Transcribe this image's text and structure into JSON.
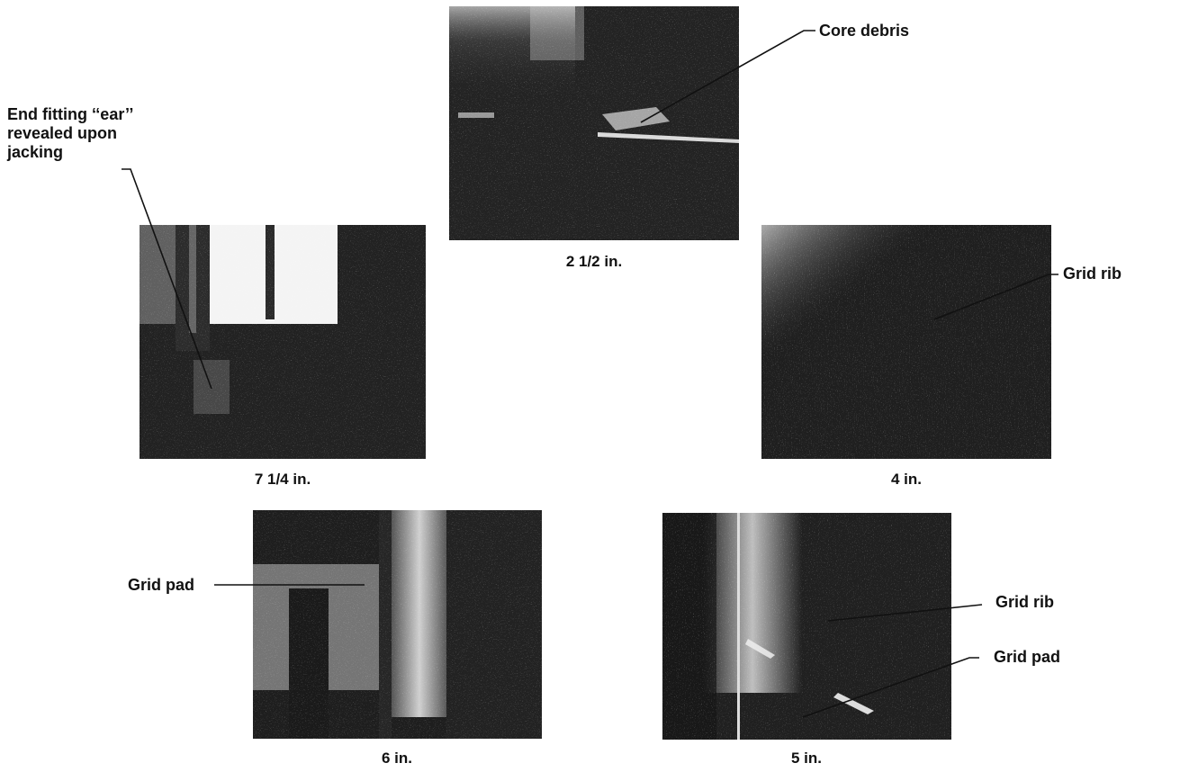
{
  "figure": {
    "panels": [
      {
        "id": "top",
        "caption": "2 1/2 in."
      },
      {
        "id": "left",
        "caption": "7 1/4 in."
      },
      {
        "id": "right",
        "caption": "4 in."
      },
      {
        "id": "bottom_left",
        "caption": "6 in."
      },
      {
        "id": "bottom_right",
        "caption": "5 in."
      }
    ],
    "labels": {
      "core_debris": "Core debris",
      "end_fitting_line1": "End fitting ‘‘ear’’",
      "end_fitting_line2": "revealed upon",
      "end_fitting_line3": "jacking",
      "grid_rib_right": "Grid rib",
      "grid_pad_left": "Grid pad",
      "grid_rib_bottom": "Grid rib",
      "grid_pad_bottom": "Grid pad"
    }
  }
}
